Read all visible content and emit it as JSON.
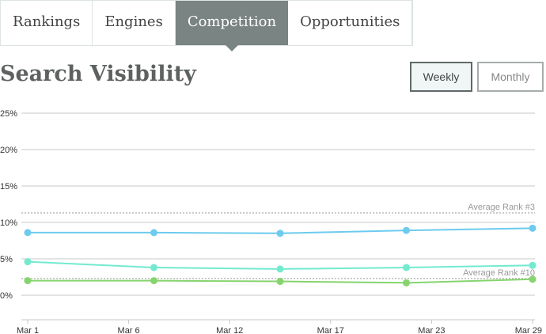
{
  "tabs": [
    {
      "label": "Rankings"
    },
    {
      "label": "Engines"
    },
    {
      "label": "Competition",
      "active": true
    },
    {
      "label": "Opportunities"
    }
  ],
  "title": "Search Visibility",
  "buttons": {
    "weekly": "Weekly",
    "monthly": "Monthly",
    "selected": "Weekly"
  },
  "chart_data": {
    "type": "line",
    "ylim": [
      -3.4,
      25
    ],
    "yticks": [
      {
        "v": 0,
        "label": "0%"
      },
      {
        "v": 5,
        "label": "5%"
      },
      {
        "v": 10,
        "label": "10%"
      },
      {
        "v": 15,
        "label": "15%"
      },
      {
        "v": 20,
        "label": "20%"
      },
      {
        "v": 25,
        "label": "25%"
      }
    ],
    "xticks": [
      "Mar 1",
      "Mar 6",
      "Mar 12",
      "Mar 17",
      "Mar 23",
      "Mar 29"
    ],
    "x": [
      "Mar 1",
      "Mar 8",
      "Mar 15",
      "Mar 22",
      "Mar 29"
    ],
    "grid": true,
    "series": [
      {
        "color": "#6ccbee",
        "values": [
          8.6,
          8.6,
          8.5,
          8.9,
          9.2
        ]
      },
      {
        "color": "#73ead0",
        "values": [
          4.6,
          3.8,
          3.6,
          3.8,
          4.1
        ]
      },
      {
        "color": "#86d46e",
        "values": [
          2.0,
          2.0,
          1.9,
          1.7,
          2.2
        ]
      }
    ],
    "reference_lines": [
      {
        "label": "Average Rank #3",
        "value": 11.3
      },
      {
        "label": "Average Rank #10",
        "value": 2.3
      }
    ]
  }
}
